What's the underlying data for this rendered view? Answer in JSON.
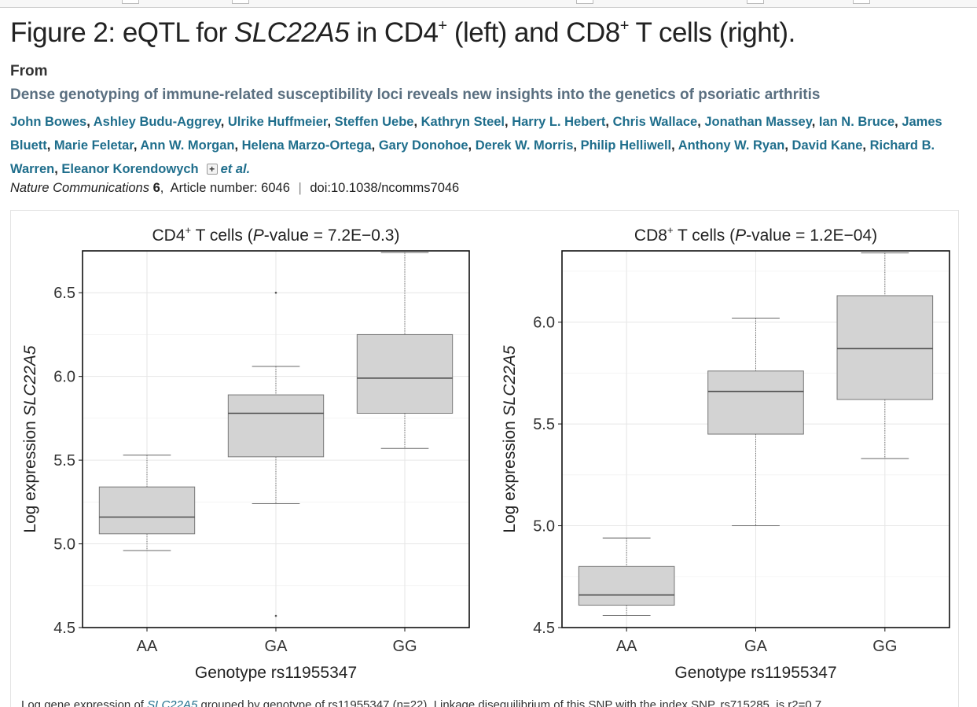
{
  "figure": {
    "title_prefix": "Figure 2: eQTL for ",
    "title_gene": "SLC22A5",
    "title_mid": " in CD4",
    "title_sup1": "+",
    "title_mid2": " (left) and CD8",
    "title_sup2": "+",
    "title_suffix": " T cells (right)."
  },
  "article": {
    "from_label": "From",
    "title": "Dense genotyping of immune-related susceptibility loci reveals new insights into the genetics of psoriatic arthritis",
    "authors": [
      "John Bowes",
      "Ashley Budu-Aggrey",
      "Ulrike Huffmeier",
      "Steffen Uebe",
      "Kathryn Steel",
      "Harry L. Hebert",
      "Chris Wallace",
      "Jonathan Massey",
      "Ian N. Bruce",
      "James Bluett",
      "Marie Feletar",
      "Ann W. Morgan",
      "Helena Marzo-Ortega",
      "Gary Donohoe",
      "Derek W. Morris",
      "Philip Helliwell",
      "Anthony W. Ryan",
      "David Kane",
      "Richard B. Warren",
      "Eleanor Korendowych"
    ],
    "expand_symbol": "+",
    "et_al": "et al.",
    "journal": "Nature Communications",
    "volume": "6",
    "article_number": "Article number: 6046",
    "doi": "doi:10.1038/ncomms7046"
  },
  "caption": {
    "text_start": "Log gene expression of ",
    "gene": "SLC22A5",
    "text_end": " grouped by genotype of rs11955347 (n=22). Linkage disequilibrium of this SNP with the index SNP, rs715285, is r2=0.7."
  },
  "colors": {
    "box_fill": "#d3d3d3",
    "box_stroke": "#4d4d4d",
    "grid": "#e6e6e6",
    "link": "#1f6e8c"
  },
  "chart_data": [
    {
      "type": "boxplot",
      "title_prefix": "CD4",
      "title_sup": "+",
      "title_mid": " T cells (",
      "title_p": "P",
      "title_suffix": "-value = 7.2E−0.3)",
      "xlabel": "Genotype rs11955347",
      "ylabel_prefix": "Log expression ",
      "ylabel_gene": "SLC22A5",
      "categories": [
        "AA",
        "GA",
        "GG"
      ],
      "ylim": [
        4.5,
        6.75
      ],
      "yticks": [
        "4.5",
        "5.0",
        "5.5",
        "6.0",
        "6.5"
      ],
      "grid": true,
      "boxes": [
        {
          "category": "AA",
          "whisker_low": 4.96,
          "q1": 5.06,
          "median": 5.16,
          "q3": 5.34,
          "whisker_high": 5.53,
          "outliers": []
        },
        {
          "category": "GA",
          "whisker_low": 5.24,
          "q1": 5.52,
          "median": 5.78,
          "q3": 5.89,
          "whisker_high": 6.06,
          "outliers": [
            4.57,
            6.5
          ]
        },
        {
          "category": "GG",
          "whisker_low": 5.57,
          "q1": 5.78,
          "median": 5.99,
          "q3": 6.25,
          "whisker_high": 6.74,
          "outliers": []
        }
      ]
    },
    {
      "type": "boxplot",
      "title_prefix": "CD8",
      "title_sup": "+",
      "title_mid": " T cells (",
      "title_p": "P",
      "title_suffix": "-value = 1.2E−04)",
      "xlabel": "Genotype rs11955347",
      "ylabel_prefix": "Log expression ",
      "ylabel_gene": "SLC22A5",
      "categories": [
        "AA",
        "GA",
        "GG"
      ],
      "ylim": [
        4.5,
        6.35
      ],
      "yticks": [
        "4.5",
        "5.0",
        "5.5",
        "6.0"
      ],
      "grid": true,
      "boxes": [
        {
          "category": "AA",
          "whisker_low": 4.56,
          "q1": 4.61,
          "median": 4.66,
          "q3": 4.8,
          "whisker_high": 4.94,
          "outliers": []
        },
        {
          "category": "GA",
          "whisker_low": 5.0,
          "q1": 5.45,
          "median": 5.66,
          "q3": 5.76,
          "whisker_high": 6.02,
          "outliers": []
        },
        {
          "category": "GG",
          "whisker_low": 5.33,
          "q1": 5.62,
          "median": 5.87,
          "q3": 6.13,
          "whisker_high": 6.34,
          "outliers": []
        }
      ]
    }
  ]
}
